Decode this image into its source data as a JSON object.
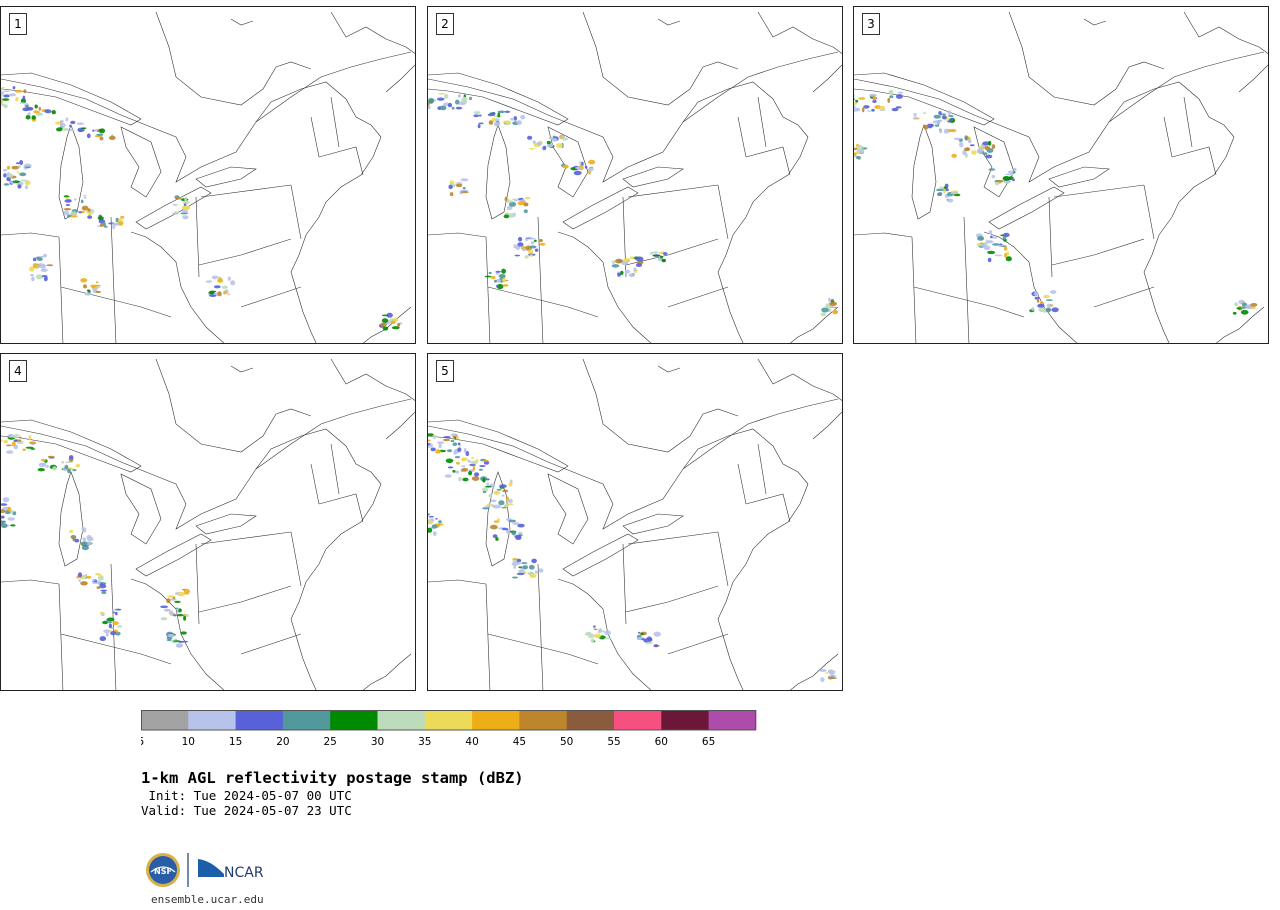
{
  "panels": [
    {
      "label": "1"
    },
    {
      "label": "2"
    },
    {
      "label": "3"
    },
    {
      "label": "4"
    },
    {
      "label": "5"
    }
  ],
  "colorbar": {
    "ticks": [
      "5",
      "10",
      "15",
      "20",
      "25",
      "30",
      "35",
      "40",
      "45",
      "50",
      "55",
      "60",
      "65"
    ],
    "colors": [
      "#a3a3a3",
      "#b8c3ec",
      "#5861d8",
      "#51999d",
      "#008a00",
      "#bcdcbc",
      "#ecdb59",
      "#eeae17",
      "#bd852c",
      "#8b5b3e",
      "#f5507f",
      "#6b1838",
      "#ad4caa"
    ]
  },
  "header": {
    "title": "1-km AGL reflectivity postage stamp (dBZ)",
    "init": " Init: Tue 2024-05-07 00 UTC",
    "valid": "Valid: Tue 2024-05-07 23 UTC"
  },
  "footer": {
    "nsf_text": "NSF",
    "ncar_text": "NCAR",
    "site": "ensemble.ucar.edu"
  }
}
